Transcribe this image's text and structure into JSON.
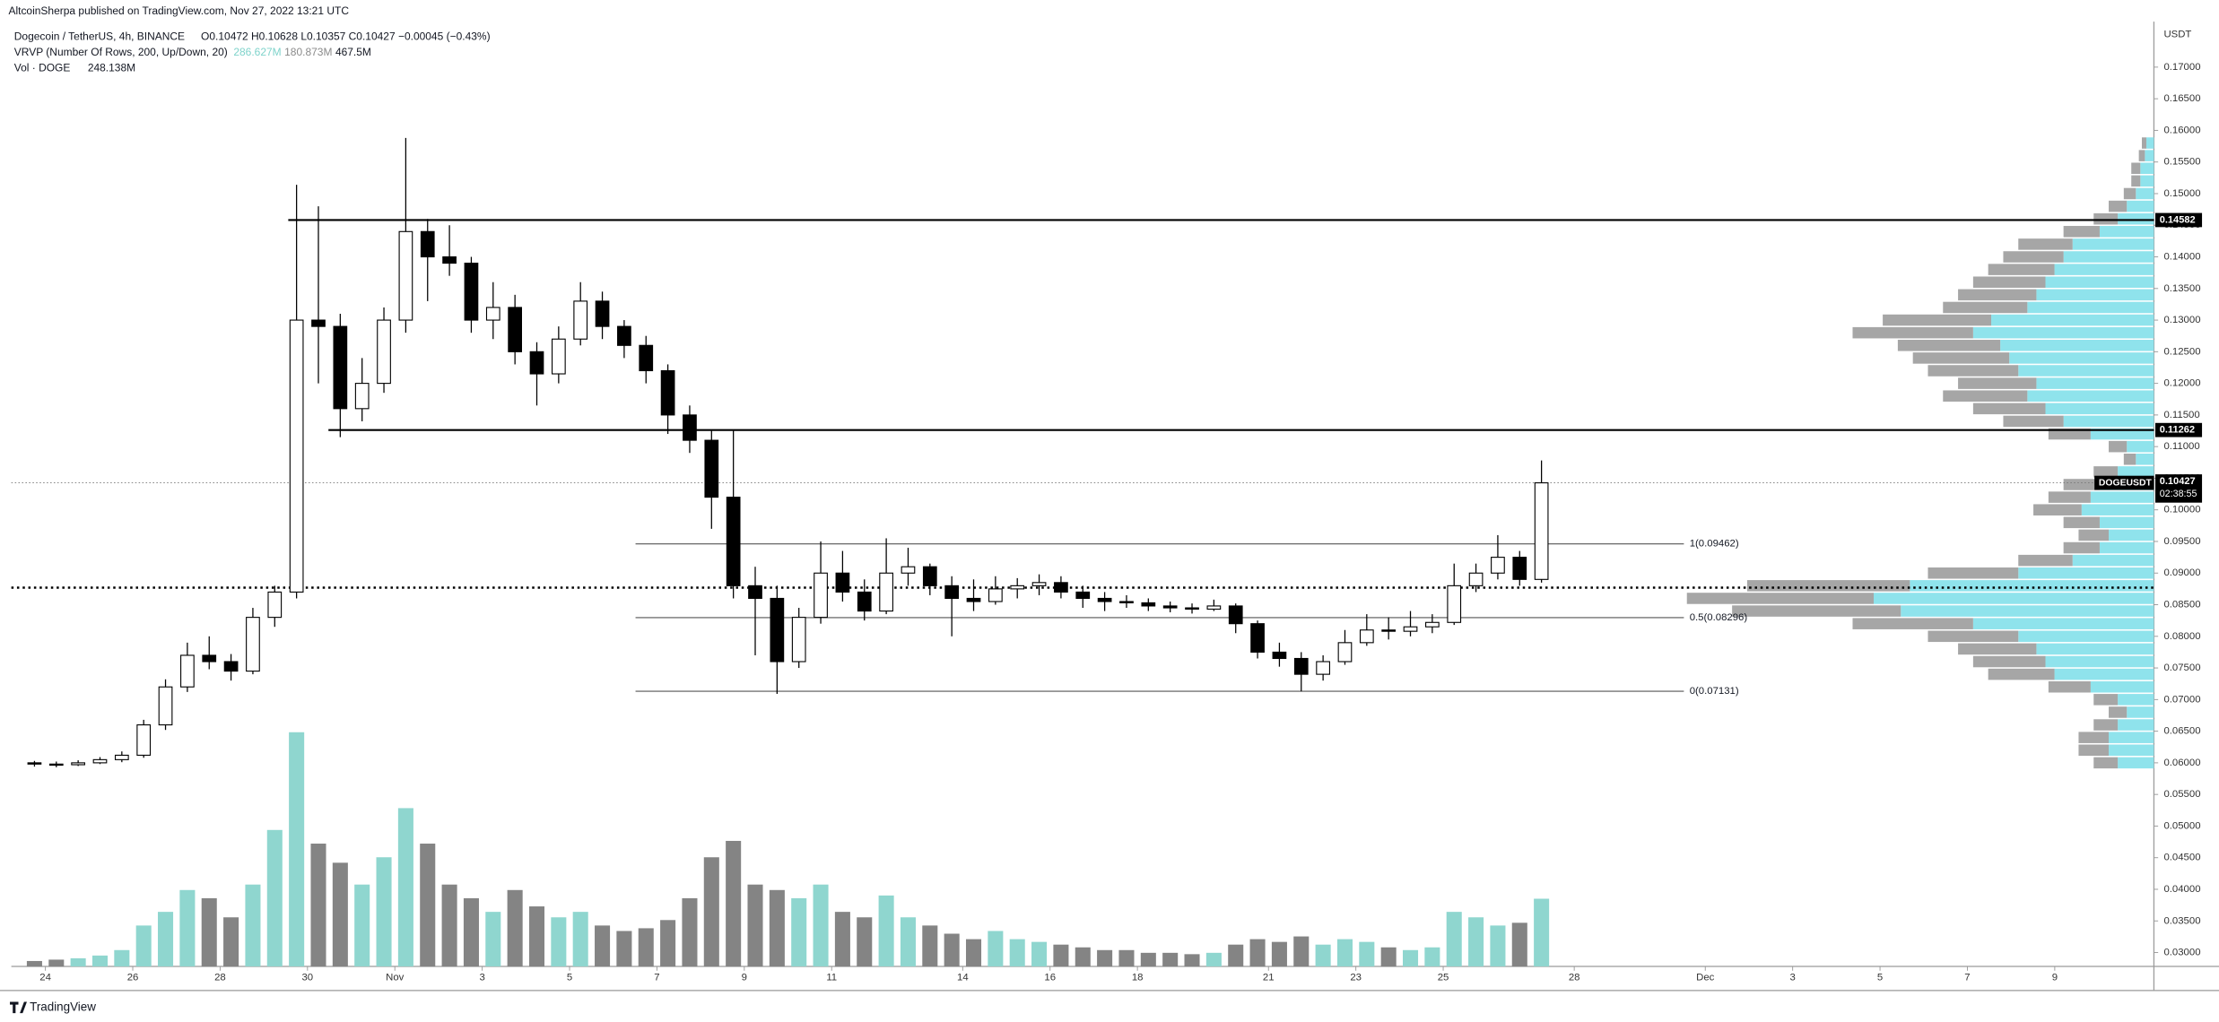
{
  "chart_data": {
    "type": "candlestick",
    "header": {
      "published": "AltcoinSherpa published on TradingView.com, Nov 27, 2022 13:21 UTC",
      "symbol": "Dogecoin / TetherUS, 4h, BINANCE",
      "ohlc": "O0.10472 H0.10628 L0.10357 C0.10427 −0.00045 (−0.43%)",
      "vrvp": "VRVP (Number Of Rows, 200, Up/Down, 20)",
      "vrvp_up": "286.627M",
      "vrvp_down": "180.873M",
      "vrvp_total": "467.5M",
      "vol": "Vol · DOGE",
      "vol_value": "248.138M"
    },
    "y_unit": "USDT",
    "footer": "TradingView",
    "x": [
      -0.25,
      0.25,
      0.75,
      1.25,
      1.75,
      2.25,
      2.75,
      3.25,
      3.75,
      4.25,
      4.75,
      5.25,
      5.75,
      6.25,
      6.75,
      7.25,
      7.75,
      8.25,
      8.75,
      9.25,
      9.75,
      10.25,
      10.75,
      11.25,
      11.75,
      12.25,
      12.75,
      13.25,
      13.75,
      14.25,
      14.75,
      15.25,
      15.75,
      16.25,
      16.75,
      17.25,
      17.75,
      18.25,
      18.75,
      19.25,
      19.75,
      20.25,
      20.75,
      21.25,
      21.75,
      22.25,
      22.75,
      23.25,
      23.75,
      24.25,
      24.75,
      25.25,
      25.75,
      26.25,
      26.75,
      27.25,
      27.75,
      28.25,
      28.75,
      29.25,
      29.75,
      30.25,
      30.75,
      31.25,
      31.75,
      32.25,
      32.75,
      33.25,
      33.75,
      34.25
    ],
    "open": [
      0.06,
      0.0598,
      0.0597,
      0.06,
      0.0605,
      0.0612,
      0.066,
      0.072,
      0.077,
      0.076,
      0.0745,
      0.083,
      0.087,
      0.13,
      0.129,
      0.116,
      0.12,
      0.13,
      0.144,
      0.14,
      0.139,
      0.13,
      0.132,
      0.125,
      0.1215,
      0.127,
      0.133,
      0.129,
      0.126,
      0.122,
      0.115,
      0.111,
      0.102,
      0.088,
      0.086,
      0.076,
      0.083,
      0.09,
      0.087,
      0.084,
      0.09,
      0.091,
      0.088,
      0.086,
      0.0855,
      0.0875,
      0.088,
      0.0885,
      0.087,
      0.086,
      0.0855,
      0.0853,
      0.0848,
      0.0845,
      0.0843,
      0.0848,
      0.082,
      0.0775,
      0.0765,
      0.074,
      0.076,
      0.079,
      0.081,
      0.0808,
      0.0815,
      0.0822,
      0.088,
      0.09,
      0.0925,
      0.089
    ],
    "high": [
      0.0603,
      0.0602,
      0.0604,
      0.0609,
      0.0618,
      0.0668,
      0.0732,
      0.079,
      0.08,
      0.0772,
      0.0845,
      0.088,
      0.1514,
      0.148,
      0.131,
      0.124,
      0.132,
      0.1588,
      0.146,
      0.145,
      0.14,
      0.136,
      0.134,
      0.1265,
      0.129,
      0.136,
      0.1345,
      0.13,
      0.1275,
      0.123,
      0.1165,
      0.1125,
      0.1125,
      0.091,
      0.088,
      0.0845,
      0.095,
      0.0935,
      0.089,
      0.0955,
      0.094,
      0.0915,
      0.0895,
      0.089,
      0.0895,
      0.0892,
      0.0898,
      0.0895,
      0.088,
      0.087,
      0.0865,
      0.086,
      0.0855,
      0.0852,
      0.0858,
      0.0852,
      0.0825,
      0.079,
      0.0775,
      0.077,
      0.081,
      0.0835,
      0.083,
      0.084,
      0.0835,
      0.0915,
      0.0915,
      0.096,
      0.0935,
      0.1078
    ],
    "low": [
      0.0594,
      0.0593,
      0.0595,
      0.0598,
      0.0601,
      0.0608,
      0.0652,
      0.0712,
      0.0748,
      0.073,
      0.074,
      0.0815,
      0.086,
      0.12,
      0.1115,
      0.114,
      0.1185,
      0.128,
      0.133,
      0.137,
      0.128,
      0.127,
      0.123,
      0.1165,
      0.12,
      0.126,
      0.127,
      0.124,
      0.12,
      0.112,
      0.109,
      0.097,
      0.086,
      0.077,
      0.0709,
      0.075,
      0.082,
      0.0855,
      0.0825,
      0.0835,
      0.088,
      0.0865,
      0.08,
      0.084,
      0.085,
      0.086,
      0.0865,
      0.086,
      0.0845,
      0.084,
      0.0845,
      0.084,
      0.0838,
      0.0836,
      0.084,
      0.0805,
      0.0765,
      0.0752,
      0.0713,
      0.073,
      0.0755,
      0.0785,
      0.0795,
      0.08,
      0.0805,
      0.0818,
      0.087,
      0.089,
      0.088,
      0.0885
    ],
    "close": [
      0.0598,
      0.0597,
      0.06,
      0.0605,
      0.0612,
      0.066,
      0.072,
      0.077,
      0.076,
      0.0745,
      0.083,
      0.087,
      0.13,
      0.129,
      0.116,
      0.12,
      0.13,
      0.144,
      0.14,
      0.139,
      0.13,
      0.132,
      0.125,
      0.1215,
      0.127,
      0.133,
      0.129,
      0.126,
      0.122,
      0.115,
      0.111,
      0.102,
      0.088,
      0.086,
      0.076,
      0.083,
      0.09,
      0.087,
      0.084,
      0.09,
      0.091,
      0.088,
      0.086,
      0.0855,
      0.0875,
      0.088,
      0.0885,
      0.087,
      0.086,
      0.0855,
      0.0853,
      0.0848,
      0.0845,
      0.0843,
      0.0848,
      0.082,
      0.0775,
      0.0765,
      0.074,
      0.076,
      0.079,
      0.081,
      0.0808,
      0.0815,
      0.0822,
      0.088,
      0.09,
      0.0925,
      0.089,
      0.10427
    ],
    "volume": [
      20,
      25,
      30,
      40,
      60,
      150,
      200,
      280,
      250,
      180,
      300,
      500,
      858,
      450,
      380,
      300,
      400,
      580,
      450,
      300,
      250,
      200,
      280,
      220,
      180,
      200,
      150,
      130,
      140,
      170,
      250,
      400,
      460,
      300,
      280,
      250,
      300,
      200,
      180,
      260,
      180,
      150,
      120,
      100,
      130,
      100,
      90,
      80,
      70,
      60,
      60,
      50,
      50,
      45,
      50,
      80,
      100,
      90,
      110,
      80,
      100,
      90,
      70,
      60,
      70,
      200,
      180,
      150,
      160,
      248.138
    ],
    "vlim": [
      0,
      1000
    ],
    "up_color": "#ffffff",
    "down_color": "#000000",
    "vol_up_color": "#8fd6cf",
    "vol_down_color": "#848484",
    "xlim": [
      -0.78,
      48.27
    ],
    "xticks": [
      {
        "value": 0,
        "label": "24"
      },
      {
        "value": 2,
        "label": "26"
      },
      {
        "value": 4,
        "label": "28"
      },
      {
        "value": 6,
        "label": "30"
      },
      {
        "value": 8,
        "label": "Nov"
      },
      {
        "value": 10,
        "label": "3"
      },
      {
        "value": 12,
        "label": "5"
      },
      {
        "value": 14,
        "label": "7"
      },
      {
        "value": 16,
        "label": "9"
      },
      {
        "value": 18,
        "label": "11"
      },
      {
        "value": 21,
        "label": "14"
      },
      {
        "value": 23,
        "label": "16"
      },
      {
        "value": 25,
        "label": "18"
      },
      {
        "value": 28,
        "label": "21"
      },
      {
        "value": 30,
        "label": "23"
      },
      {
        "value": 32,
        "label": "25"
      },
      {
        "value": 35,
        "label": "28"
      },
      {
        "value": 38,
        "label": "Dec"
      },
      {
        "value": 40,
        "label": "3"
      },
      {
        "value": 42,
        "label": "5"
      },
      {
        "value": 44,
        "label": "7"
      },
      {
        "value": 46,
        "label": "9"
      }
    ],
    "ylim": [
      0.0278,
      0.1772
    ],
    "yticks": [
      {
        "value": 0.03,
        "label": "0.03000"
      },
      {
        "value": 0.035,
        "label": "0.03500"
      },
      {
        "value": 0.04,
        "label": "0.04000"
      },
      {
        "value": 0.045,
        "label": "0.04500"
      },
      {
        "value": 0.05,
        "label": "0.05000"
      },
      {
        "value": 0.055,
        "label": "0.05500"
      },
      {
        "value": 0.06,
        "label": "0.06000"
      },
      {
        "value": 0.065,
        "label": "0.06500"
      },
      {
        "value": 0.07,
        "label": "0.07000"
      },
      {
        "value": 0.075,
        "label": "0.07500"
      },
      {
        "value": 0.08,
        "label": "0.08000"
      },
      {
        "value": 0.085,
        "label": "0.08500"
      },
      {
        "value": 0.09,
        "label": "0.09000"
      },
      {
        "value": 0.095,
        "label": "0.09500"
      },
      {
        "value": 0.1,
        "label": "0.10000"
      },
      {
        "value": 0.105,
        "label": "0.10500"
      },
      {
        "value": 0.11,
        "label": "0.11000"
      },
      {
        "value": 0.115,
        "label": "0.11500"
      },
      {
        "value": 0.12,
        "label": "0.12000"
      },
      {
        "value": 0.125,
        "label": "0.12500"
      },
      {
        "value": 0.13,
        "label": "0.13000"
      },
      {
        "value": 0.135,
        "label": "0.13500"
      },
      {
        "value": 0.14,
        "label": "0.14000"
      },
      {
        "value": 0.145,
        "label": "0.14500"
      },
      {
        "value": 0.15,
        "label": "0.15000"
      },
      {
        "value": 0.155,
        "label": "0.15500"
      },
      {
        "value": 0.16,
        "label": "0.16000"
      },
      {
        "value": 0.165,
        "label": "0.16500"
      },
      {
        "value": 0.17,
        "label": "0.17000"
      }
    ],
    "levels": [
      {
        "value": 0.14582,
        "start": 5.56
      },
      {
        "value": 0.11262,
        "start": 6.48
      }
    ],
    "fib": {
      "start": 13.51,
      "end": 37.51,
      "lines": [
        {
          "value": 0.09462,
          "label": "1(0.09462)"
        },
        {
          "value": 0.08296,
          "label": "0.5(0.08296)"
        },
        {
          "value": 0.07131,
          "label": "0(0.07131)"
        }
      ]
    },
    "poc": 0.0877,
    "last": {
      "value": 0.10427,
      "name": "DOGEUSDT",
      "countdown": "02:38:55"
    },
    "profile": {
      "prices": [
        0.06,
        0.062,
        0.064,
        0.066,
        0.068,
        0.07,
        0.072,
        0.074,
        0.076,
        0.078,
        0.08,
        0.082,
        0.084,
        0.086,
        0.088,
        0.09,
        0.092,
        0.094,
        0.096,
        0.098,
        0.1,
        0.102,
        0.104,
        0.106,
        0.108,
        0.11,
        0.112,
        0.114,
        0.116,
        0.118,
        0.12,
        0.122,
        0.124,
        0.126,
        0.128,
        0.13,
        0.132,
        0.134,
        0.136,
        0.138,
        0.14,
        0.142,
        0.144,
        0.146,
        0.148,
        0.15,
        0.152,
        0.154,
        0.156,
        0.158
      ],
      "up": [
        2.4,
        3,
        3,
        2.4,
        1.8,
        2.4,
        4.2,
        6.6,
        7.2,
        7.8,
        9,
        12,
        16.8,
        18.6,
        16.2,
        9,
        5.4,
        3.6,
        3,
        3.6,
        4.8,
        4.2,
        3.6,
        2.4,
        1.2,
        1.8,
        4.2,
        6,
        7.2,
        8.4,
        7.8,
        9,
        9.6,
        10.2,
        12,
        10.8,
        8.4,
        7.8,
        7.2,
        6.6,
        6,
        5.4,
        3.6,
        2.4,
        1.8,
        1.2,
        0.9,
        0.9,
        0.6,
        0.5
      ],
      "down": [
        1.6,
        2,
        2,
        1.6,
        1.2,
        1.6,
        2.8,
        4.4,
        4.8,
        5.2,
        6,
        8,
        11.2,
        12.4,
        10.8,
        6,
        3.6,
        2.4,
        2,
        2.4,
        3.2,
        2.8,
        2.4,
        1.6,
        0.8,
        1.2,
        2.8,
        4,
        4.8,
        5.6,
        5.2,
        6,
        6.4,
        6.8,
        8,
        7.2,
        5.6,
        5.2,
        4.8,
        4.4,
        4,
        3.6,
        2.4,
        1.6,
        1.2,
        0.8,
        0.6,
        0.6,
        0.4,
        0.3
      ],
      "up_color": "#8fe3ec",
      "down_color": "#a6a6a6"
    }
  }
}
